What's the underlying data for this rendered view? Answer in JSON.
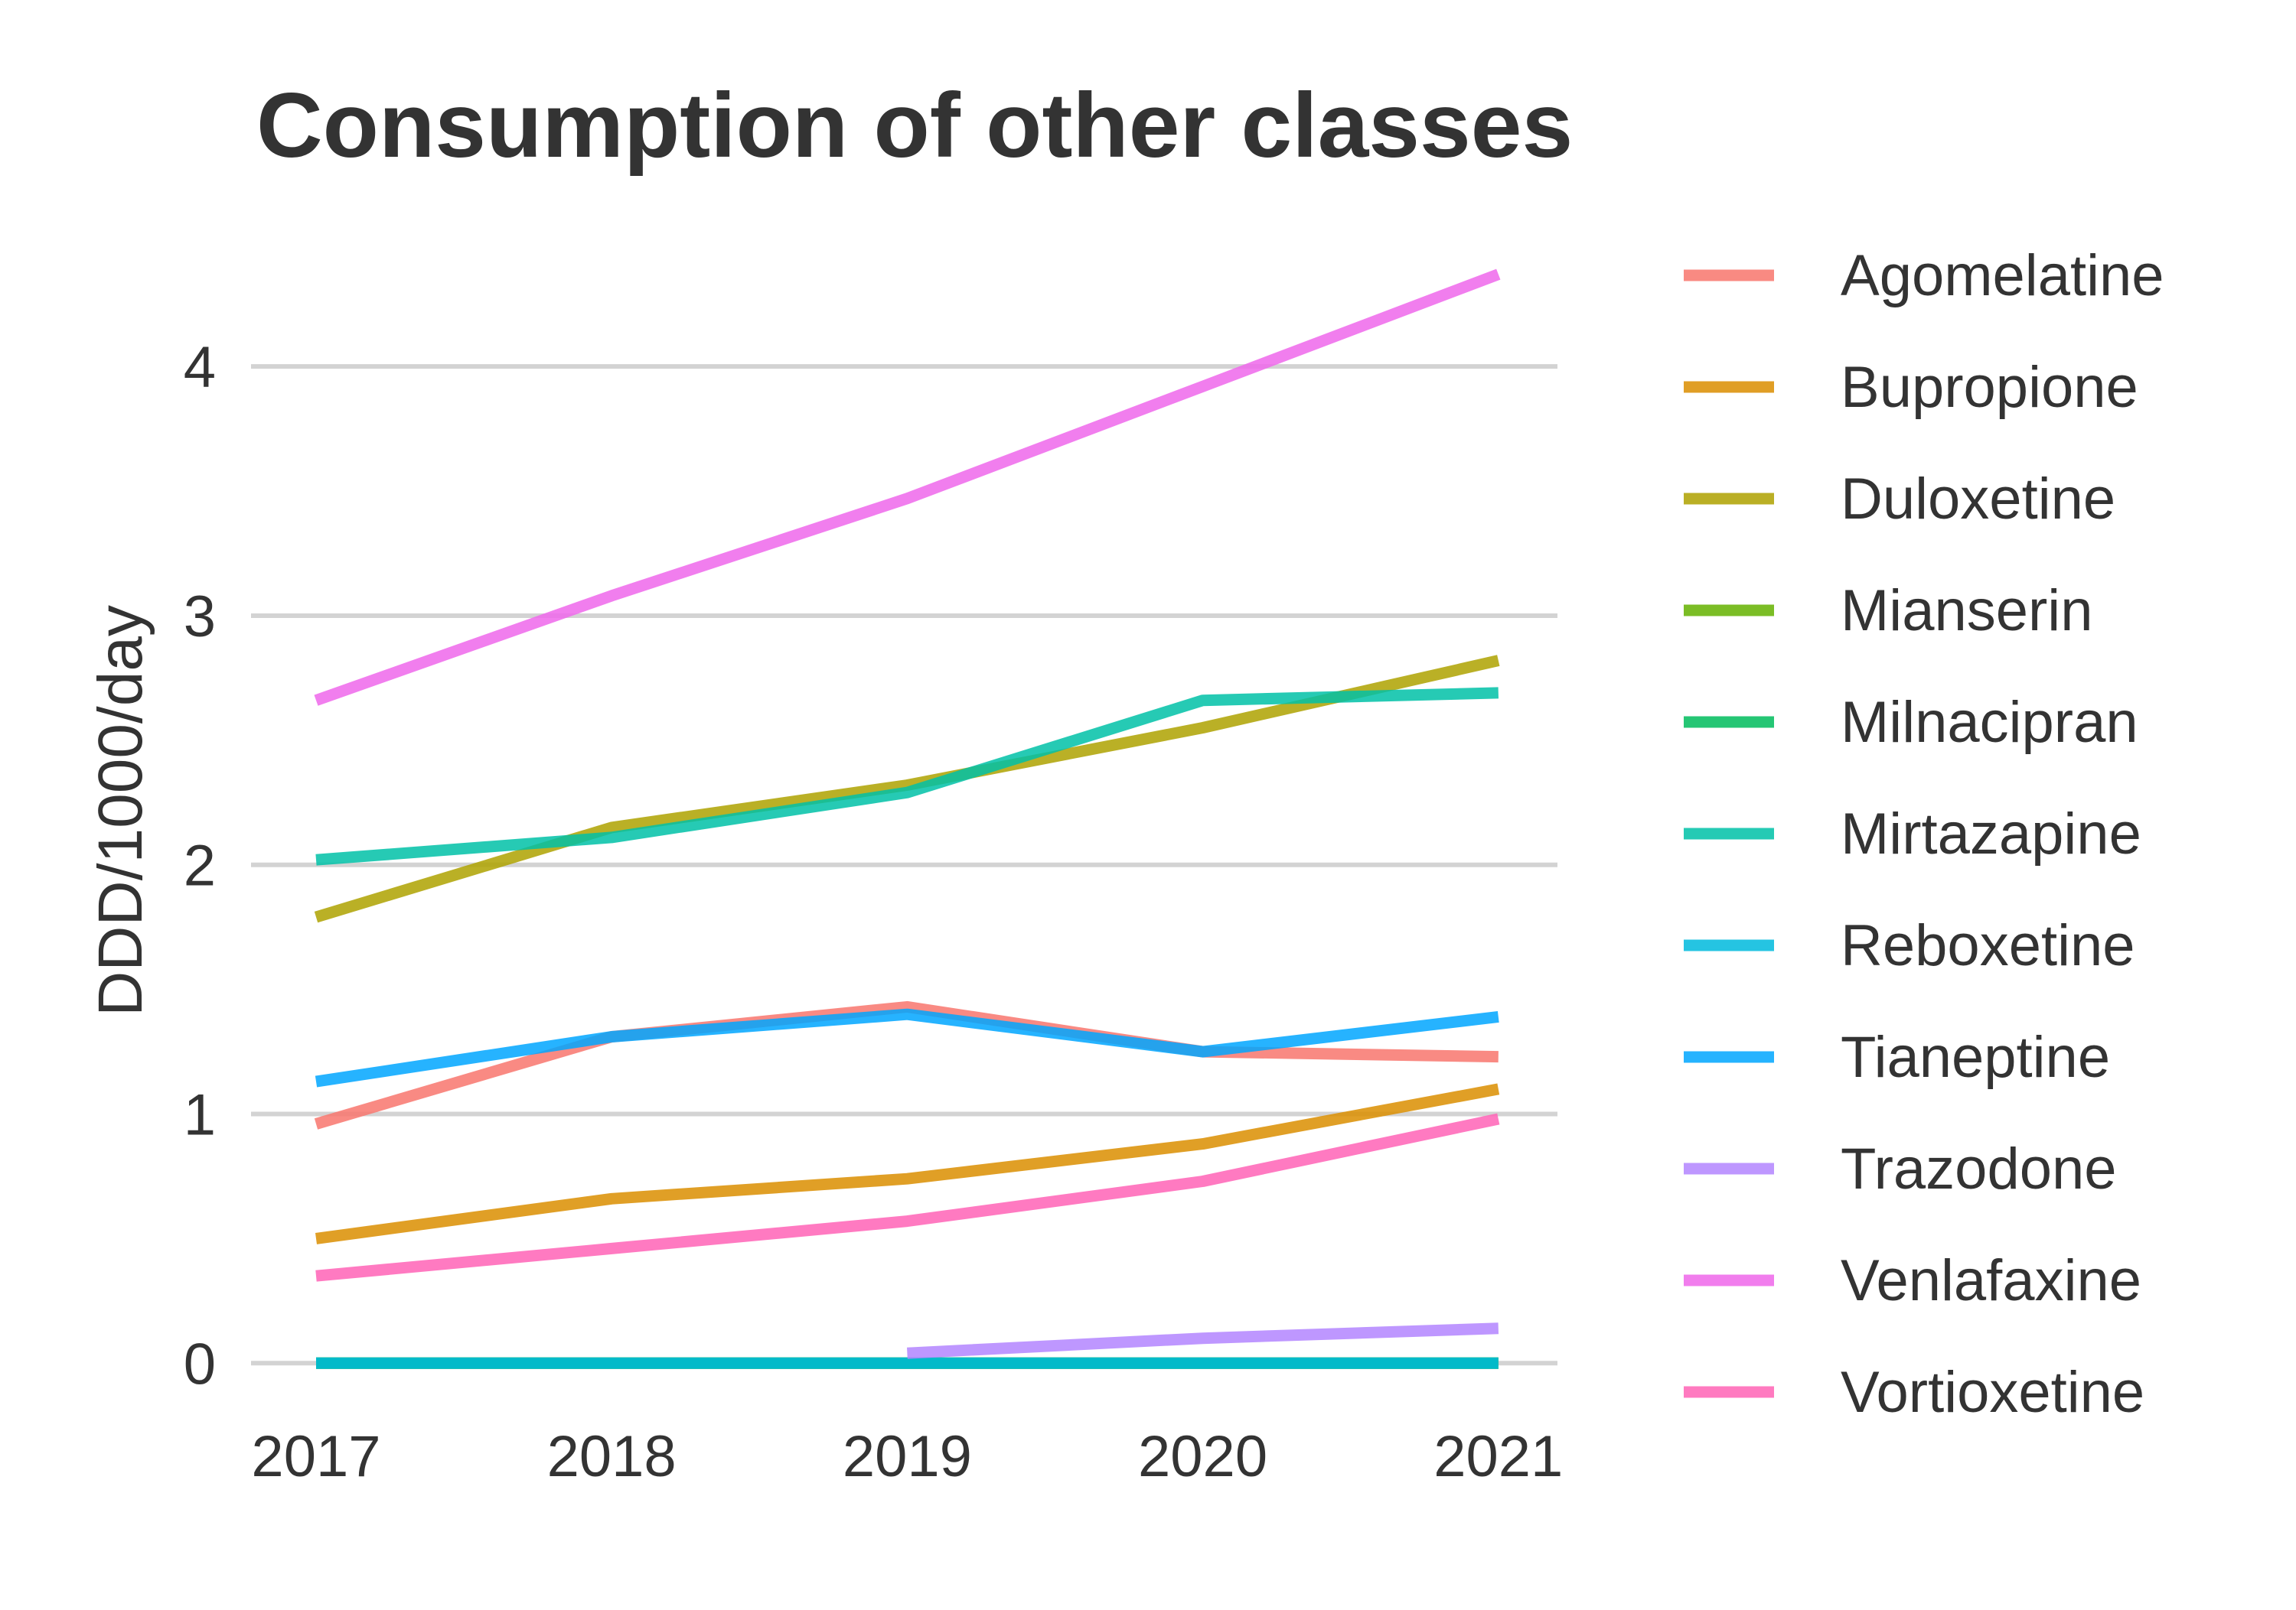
{
  "chart_data": {
    "type": "line",
    "title": "Consumption of other classes",
    "xlabel": "",
    "ylabel": "DDD/1000/day",
    "x": [
      2017,
      2018,
      2019,
      2020,
      2021
    ],
    "xlim": [
      2016.78,
      2021.2
    ],
    "ylim": [
      -0.3,
      4.55
    ],
    "yticks": [
      0,
      1,
      2,
      3,
      4
    ],
    "grid": "horizontal",
    "legend": "right",
    "series": [
      {
        "name": "Agomelatine",
        "color": "#F8766D",
        "values": [
          0.96,
          1.31,
          1.43,
          1.25,
          1.23
        ]
      },
      {
        "name": "Bupropione",
        "color": "#DB8E00",
        "values": [
          0.5,
          0.66,
          0.74,
          0.88,
          1.1
        ]
      },
      {
        "name": "Duloxetine",
        "color": "#AEA200",
        "values": [
          1.79,
          2.15,
          2.32,
          2.55,
          2.82
        ]
      },
      {
        "name": "Mianserin",
        "color": "#64B200",
        "values": [
          0,
          0,
          0,
          0,
          0
        ]
      },
      {
        "name": "Milnacipran",
        "color": "#00BD5C",
        "values": [
          0,
          0,
          0,
          0,
          0
        ]
      },
      {
        "name": "Mirtazapine",
        "color": "#00C1A7",
        "values": [
          2.02,
          2.11,
          2.29,
          2.66,
          2.69
        ]
      },
      {
        "name": "Reboxetine",
        "color": "#00BADE",
        "values": [
          0,
          0,
          0,
          0,
          0
        ]
      },
      {
        "name": "Tianeptine",
        "color": "#00A6FF",
        "values": [
          1.13,
          1.31,
          1.4,
          1.25,
          1.39
        ]
      },
      {
        "name": "Trazodone",
        "color": "#B385FF",
        "values": [
          null,
          null,
          0.04,
          0.1,
          0.14
        ]
      },
      {
        "name": "Venlafaxine",
        "color": "#EF67EB",
        "values": [
          2.66,
          3.08,
          3.47,
          3.92,
          4.37
        ]
      },
      {
        "name": "Vortioxetine",
        "color": "#FF63B6",
        "values": [
          0.35,
          0.46,
          0.57,
          0.73,
          0.98
        ]
      }
    ]
  }
}
